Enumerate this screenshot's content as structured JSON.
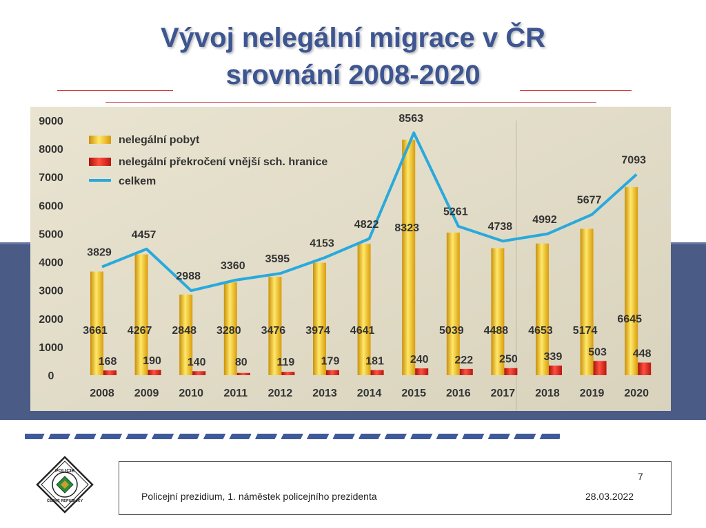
{
  "slide": {
    "title_line1": "Vývoj nelegální migrace v ČR",
    "title_line2": "srovnání 2008-2020",
    "footer_text": "Policejní prezidium, 1. náměstek policejního prezidenta",
    "footer_date": "28.03.2022",
    "page_number": "7",
    "logo_text": "POLICIE ČESKÉ REPUBLIKY"
  },
  "colors": {
    "title": "#3d5591",
    "bar_yellow": "#f2c11d",
    "bar_red": "#e52519",
    "line": "#29a9dc",
    "plot_bg": "#e8e2cf",
    "band": "#4a5b86"
  },
  "chart_data": {
    "type": "bar",
    "categories": [
      "2008",
      "2009",
      "2010",
      "2011",
      "2012",
      "2013",
      "2014",
      "2015",
      "2016",
      "2017",
      "2018",
      "2019",
      "2020"
    ],
    "series": [
      {
        "name": "nelegální pobyt",
        "type": "bar",
        "values": [
          3661,
          4267,
          2848,
          3280,
          3476,
          3974,
          4641,
          8323,
          5039,
          4488,
          4653,
          5174,
          6645
        ]
      },
      {
        "name": "nelegální překročení vnější sch. hranice",
        "type": "bar",
        "values": [
          168,
          190,
          140,
          80,
          119,
          179,
          181,
          240,
          222,
          250,
          339,
          503,
          448
        ]
      },
      {
        "name": "celkem",
        "type": "line",
        "values": [
          3829,
          4457,
          2988,
          3360,
          3595,
          4153,
          4822,
          8563,
          5261,
          4738,
          4992,
          5677,
          7093
        ]
      }
    ],
    "yticks": [
      "0",
      "1000",
      "2000",
      "3000",
      "4000",
      "5000",
      "6000",
      "7000",
      "8000",
      "9000"
    ],
    "ylim": [
      0,
      9000
    ],
    "title": "",
    "xlabel": "",
    "ylabel": "",
    "legend": "top-left"
  }
}
